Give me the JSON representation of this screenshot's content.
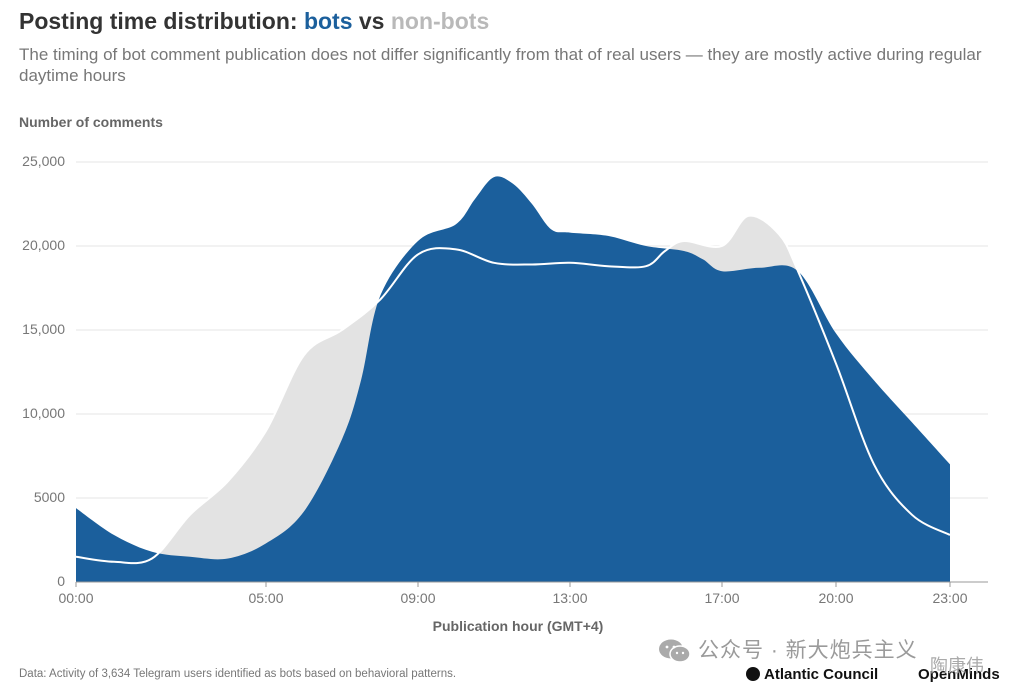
{
  "title": {
    "prefix": "Posting time distribution: ",
    "bots": "bots",
    "vs": " vs ",
    "nonbots": "non-bots"
  },
  "subtitle": "The timing of bot comment publication does not differ significantly from that of real users — they are mostly active during regular daytime hours",
  "colors": {
    "bots": "#1b5f9c",
    "nonbots": "#e3e3e3",
    "nonbots_title": "#b9b9b9",
    "grid": "#e6e6e6",
    "axis": "#999999",
    "text": "#777777"
  },
  "chart_data": {
    "type": "area",
    "ylabel": "Number of comments",
    "xlabel": "Publication hour (GMT+4)",
    "xlim": [
      0,
      23.5
    ],
    "ylim": [
      0,
      25000
    ],
    "x_ticks": [
      {
        "v": 0,
        "label": "00:00"
      },
      {
        "v": 5,
        "label": "05:00"
      },
      {
        "v": 9,
        "label": "09:00"
      },
      {
        "v": 13,
        "label": "13:00"
      },
      {
        "v": 17,
        "label": "17:00"
      },
      {
        "v": 20,
        "label": "20:00"
      },
      {
        "v": 23,
        "label": "23:00"
      }
    ],
    "y_ticks": [
      {
        "v": 0,
        "label": "0"
      },
      {
        "v": 5000,
        "label": "5000"
      },
      {
        "v": 10000,
        "label": "10,000"
      },
      {
        "v": 15000,
        "label": "15,000"
      },
      {
        "v": 20000,
        "label": "20,000"
      },
      {
        "v": 25000,
        "label": "25,000"
      }
    ],
    "grid": true,
    "series": [
      {
        "name": "non-bots",
        "x": [
          0,
          1,
          2,
          3,
          4,
          5,
          6,
          7,
          8,
          9,
          10,
          11,
          12,
          13,
          14,
          15,
          15.5,
          16,
          17,
          17.7,
          18.5,
          19,
          20,
          21,
          22,
          23
        ],
        "values": [
          1500,
          1200,
          1400,
          4000,
          6000,
          9000,
          13500,
          15000,
          16800,
          19500,
          19800,
          19000,
          18900,
          19000,
          18800,
          18800,
          19700,
          20300,
          20000,
          21800,
          20700,
          18500,
          13000,
          7000,
          4000,
          2800
        ]
      },
      {
        "name": "bots",
        "x": [
          0,
          1,
          2,
          3,
          4,
          5,
          6,
          7,
          7.5,
          8,
          9,
          10,
          10.5,
          11,
          11.5,
          12,
          12.5,
          13,
          14,
          15,
          16,
          16.5,
          17,
          18,
          19,
          20,
          21,
          22,
          23
        ],
        "values": [
          4400,
          2800,
          1800,
          1500,
          1400,
          2300,
          4200,
          8500,
          12000,
          17000,
          20300,
          21300,
          22800,
          24100,
          23700,
          22500,
          21000,
          20800,
          20600,
          20000,
          19700,
          19200,
          18500,
          18700,
          18500,
          14800,
          12000,
          9500,
          7000
        ]
      }
    ]
  },
  "footer": {
    "data_note": "Data: Activity of 3,634 Telegram users identified as bots based on behavioral patterns.",
    "watermark": "公众号 · 新大炮兵主义",
    "logo_atlantic": "Atlantic Council",
    "logo_openminds": "OpenMinds",
    "weibo_user": "陶康伟"
  }
}
